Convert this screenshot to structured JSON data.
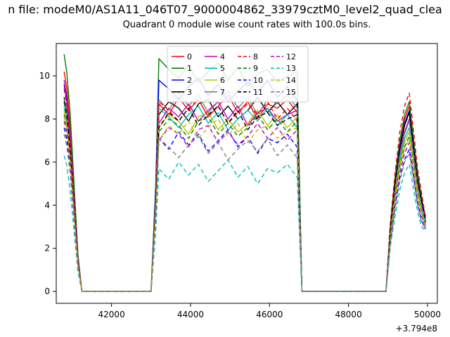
{
  "chart_data": {
    "type": "line",
    "suptitle": "n file: modeM0/AS1A11_046T07_9000004862_33979cztM0_level2_quad_clea",
    "title": "Quadrant 0 module wise count rates with 100.0s bins.",
    "xlabel": "",
    "ylabel": "",
    "x_offset_label": "+3.794e8",
    "xlim": [
      40600,
      50250
    ],
    "ylim": [
      -0.55,
      11.5
    ],
    "xticks": [
      42000,
      44000,
      46000,
      48000,
      50000
    ],
    "yticks": [
      0,
      2,
      4,
      6,
      8,
      10
    ],
    "grid": false,
    "legend": {
      "position": "upper center",
      "columns": 4
    },
    "x": [
      40800,
      40870,
      40950,
      41050,
      41150,
      41250,
      41350,
      41500,
      43000,
      43120,
      43200,
      43450,
      43700,
      43950,
      44200,
      44450,
      44700,
      44950,
      45200,
      45450,
      45700,
      45950,
      46200,
      46450,
      46700,
      46820,
      46950,
      48950,
      49060,
      49180,
      49300,
      49420,
      49540,
      49650,
      49750,
      49850,
      49950
    ],
    "series": [
      {
        "name": "0",
        "color": "#ff0000",
        "dash": false,
        "values": [
          10.2,
          9.4,
          7.7,
          4.6,
          1.5,
          0,
          0,
          0,
          0,
          4.3,
          8.7,
          8.2,
          9.0,
          8.4,
          8.9,
          8.1,
          8.6,
          9.1,
          8.3,
          8.8,
          8.0,
          8.7,
          8.5,
          8.9,
          8.3,
          0,
          0,
          0,
          3.0,
          5.2,
          6.9,
          8.0,
          8.6,
          6.9,
          5.3,
          4.3,
          3.4
        ]
      },
      {
        "name": "1",
        "color": "#008000",
        "dash": false,
        "values": [
          11.0,
          10.1,
          8.3,
          5.0,
          1.7,
          0,
          0,
          0,
          0,
          5.0,
          10.8,
          10.3,
          9.9,
          10.5,
          9.7,
          10.2,
          10.6,
          9.8,
          10.4,
          9.5,
          10.1,
          10.3,
          9.7,
          10.0,
          10.2,
          0,
          0,
          0,
          3.1,
          5.3,
          7.0,
          8.2,
          8.8,
          7.0,
          5.5,
          4.4,
          3.3
        ]
      },
      {
        "name": "2",
        "color": "#0000ff",
        "dash": false,
        "values": [
          9.6,
          8.8,
          7.2,
          4.3,
          1.4,
          0,
          0,
          0,
          0,
          4.7,
          9.8,
          9.4,
          8.9,
          9.5,
          9.9,
          9.1,
          9.6,
          8.8,
          9.3,
          9.7,
          9.2,
          9.8,
          9.0,
          9.5,
          8.9,
          0,
          0,
          0,
          2.9,
          5.0,
          6.7,
          7.8,
          8.4,
          6.7,
          5.2,
          4.2,
          3.5
        ]
      },
      {
        "name": "3",
        "color": "#000000",
        "dash": false,
        "values": [
          9.0,
          8.3,
          6.8,
          4.1,
          1.4,
          0,
          0,
          0,
          0,
          4.2,
          8.2,
          8.8,
          8.5,
          7.9,
          8.7,
          8.9,
          8.1,
          8.6,
          8.0,
          8.4,
          9.0,
          8.3,
          8.8,
          8.2,
          8.7,
          0,
          0,
          0,
          2.9,
          5.0,
          6.6,
          7.7,
          8.3,
          6.6,
          5.1,
          4.2,
          3.2
        ]
      },
      {
        "name": "4",
        "color": "#bf00bf",
        "dash": false,
        "values": [
          9.8,
          9.0,
          7.4,
          4.4,
          1.5,
          0,
          0,
          0,
          0,
          4.1,
          7.8,
          8.5,
          8.1,
          8.7,
          7.9,
          8.4,
          8.8,
          8.0,
          8.6,
          7.7,
          8.3,
          8.5,
          7.9,
          8.2,
          8.4,
          0,
          0,
          0,
          2.8,
          4.8,
          6.4,
          7.4,
          8.0,
          6.4,
          5.0,
          4.0,
          3.3
        ]
      },
      {
        "name": "5",
        "color": "#00bfbf",
        "dash": false,
        "values": [
          8.6,
          7.9,
          6.5,
          3.9,
          1.3,
          0,
          0,
          0,
          0,
          4.0,
          8.5,
          8.1,
          7.6,
          8.2,
          8.6,
          7.8,
          8.3,
          7.5,
          8.0,
          8.4,
          7.9,
          8.5,
          7.7,
          8.2,
          7.6,
          0,
          0,
          0,
          2.7,
          4.6,
          6.1,
          7.1,
          7.6,
          6.1,
          4.7,
          3.8,
          3.1
        ]
      },
      {
        "name": "6",
        "color": "#bfbf00",
        "dash": false,
        "values": [
          8.4,
          7.7,
          6.3,
          3.8,
          1.3,
          0,
          0,
          0,
          0,
          3.9,
          7.6,
          8.2,
          7.9,
          7.3,
          8.1,
          8.3,
          7.5,
          8.0,
          7.4,
          7.8,
          8.4,
          7.7,
          8.2,
          7.6,
          8.1,
          0,
          0,
          0,
          2.6,
          4.4,
          5.9,
          6.9,
          7.4,
          5.9,
          4.6,
          3.7,
          3.0
        ]
      },
      {
        "name": "7",
        "color": "#808080",
        "dash": false,
        "values": [
          8.9,
          8.2,
          6.7,
          4.0,
          1.3,
          0,
          0,
          0,
          0,
          4.4,
          8.9,
          8.4,
          9.2,
          8.6,
          9.1,
          8.3,
          8.8,
          9.3,
          8.5,
          9.0,
          8.2,
          8.9,
          8.7,
          9.1,
          8.5,
          0,
          0,
          0,
          2.8,
          4.7,
          6.3,
          7.3,
          7.9,
          6.3,
          4.9,
          4.0,
          3.3
        ]
      },
      {
        "name": "8",
        "color": "#ff0000",
        "dash": true,
        "values": [
          9.4,
          8.6,
          7.1,
          4.2,
          1.4,
          0,
          0,
          0,
          0,
          4.2,
          8.8,
          8.4,
          7.9,
          8.5,
          8.9,
          8.1,
          8.6,
          7.8,
          8.3,
          8.7,
          8.2,
          8.8,
          8.0,
          8.5,
          7.9,
          0,
          0,
          0,
          3.2,
          5.5,
          7.4,
          8.6,
          9.2,
          7.4,
          5.7,
          4.6,
          3.4
        ]
      },
      {
        "name": "9",
        "color": "#008000",
        "dash": true,
        "values": [
          8.2,
          7.5,
          6.2,
          3.7,
          1.2,
          0,
          0,
          0,
          0,
          3.8,
          7.4,
          8.0,
          7.7,
          7.1,
          7.9,
          8.1,
          7.3,
          7.8,
          7.2,
          7.6,
          8.2,
          7.5,
          8.0,
          7.4,
          7.9,
          0,
          0,
          0,
          2.5,
          4.3,
          5.8,
          6.7,
          7.2,
          5.8,
          4.5,
          3.6,
          3.0
        ]
      },
      {
        "name": "10",
        "color": "#0000ff",
        "dash": true,
        "values": [
          7.6,
          7.0,
          5.7,
          3.4,
          1.1,
          0,
          0,
          0,
          0,
          3.5,
          7.1,
          6.6,
          7.4,
          6.8,
          7.3,
          6.5,
          7.0,
          7.5,
          6.7,
          7.2,
          6.4,
          7.1,
          6.9,
          7.3,
          6.7,
          0,
          0,
          0,
          2.3,
          4.0,
          5.3,
          6.1,
          6.6,
          5.3,
          4.1,
          3.3,
          2.9
        ]
      },
      {
        "name": "11",
        "color": "#000000",
        "dash": true,
        "values": [
          8.8,
          8.1,
          6.6,
          4.0,
          1.3,
          0,
          0,
          0,
          0,
          4.0,
          7.6,
          8.3,
          7.9,
          8.5,
          7.7,
          8.2,
          8.6,
          7.8,
          8.4,
          7.5,
          8.1,
          8.3,
          7.7,
          8.0,
          8.2,
          0,
          0,
          0,
          2.9,
          5.0,
          6.6,
          7.7,
          8.3,
          6.6,
          5.1,
          4.2,
          3.2
        ]
      },
      {
        "name": "12",
        "color": "#bf00bf",
        "dash": true,
        "values": [
          7.9,
          7.3,
          5.9,
          3.6,
          1.2,
          0,
          0,
          0,
          0,
          3.6,
          7.0,
          7.6,
          7.3,
          6.7,
          7.5,
          7.7,
          6.9,
          7.4,
          6.8,
          7.2,
          7.8,
          7.1,
          7.6,
          7.0,
          7.5,
          0,
          0,
          0,
          2.4,
          4.1,
          5.5,
          6.4,
          6.9,
          5.5,
          4.3,
          3.5,
          3.0
        ]
      },
      {
        "name": "13",
        "color": "#00bfbf",
        "dash": true,
        "values": [
          6.3,
          5.8,
          4.7,
          2.8,
          0.9,
          0,
          0,
          0,
          0,
          2.8,
          5.7,
          5.2,
          6.0,
          5.4,
          5.9,
          5.1,
          5.6,
          6.1,
          5.3,
          5.8,
          5.0,
          5.7,
          5.5,
          5.9,
          5.3,
          0,
          0,
          0,
          2.1,
          3.5,
          4.7,
          5.5,
          5.9,
          4.7,
          3.7,
          3.0,
          2.8
        ]
      },
      {
        "name": "14",
        "color": "#bfbf00",
        "dash": true,
        "values": [
          8.1,
          7.5,
          6.1,
          3.6,
          1.2,
          0,
          0,
          0,
          0,
          3.7,
          7.0,
          7.7,
          7.3,
          7.9,
          7.1,
          7.6,
          8.0,
          7.2,
          7.8,
          6.9,
          7.5,
          7.7,
          7.1,
          7.4,
          7.6,
          0,
          0,
          0,
          2.5,
          4.3,
          5.7,
          6.6,
          7.1,
          5.7,
          4.4,
          3.6,
          3.1
        ]
      },
      {
        "name": "15",
        "color": "#808080",
        "dash": true,
        "values": [
          7.3,
          6.7,
          5.5,
          3.3,
          1.1,
          0,
          0,
          0,
          0,
          3.3,
          7.1,
          6.7,
          6.2,
          6.8,
          7.2,
          6.4,
          6.9,
          6.1,
          6.6,
          7.0,
          6.5,
          7.1,
          6.3,
          6.8,
          6.2,
          0,
          0,
          0,
          2.2,
          3.8,
          5.1,
          6.0,
          6.4,
          5.1,
          4.0,
          3.2,
          2.9
        ]
      }
    ]
  }
}
